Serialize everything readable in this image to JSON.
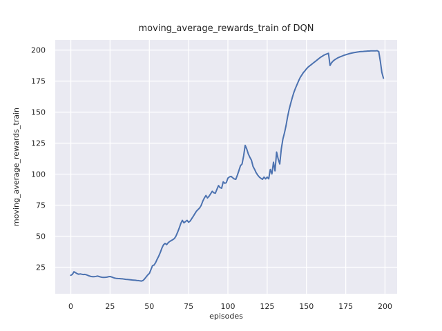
{
  "chart_data": {
    "type": "line",
    "title": "moving_average_rewards_train of DQN",
    "xlabel": "episodes",
    "ylabel": "moving_average_rewards_train",
    "xlim": [
      -9.9,
      207.7
    ],
    "ylim": [
      3.6,
      208.1
    ],
    "xticks": [
      0,
      25,
      50,
      75,
      100,
      125,
      150,
      175,
      200
    ],
    "yticks": [
      25,
      50,
      75,
      100,
      125,
      150,
      175,
      200
    ],
    "grid": true,
    "legend": false,
    "style": {
      "figure_bg": "#ffffff",
      "axes_bg": "#eaeaf2",
      "grid_color": "#ffffff",
      "line_color": "#4c72b0",
      "text_color": "#262626",
      "line_width": 2
    },
    "series": [
      {
        "name": "moving_average_rewards_train",
        "points": [
          [
            0,
            18.5
          ],
          [
            1,
            19.2
          ],
          [
            2,
            21.3
          ],
          [
            3,
            20.6
          ],
          [
            4,
            19.8
          ],
          [
            5,
            19.3
          ],
          [
            6,
            19.6
          ],
          [
            7,
            19.3
          ],
          [
            8,
            19.1
          ],
          [
            9,
            19.2
          ],
          [
            10,
            18.8
          ],
          [
            11,
            18.3
          ],
          [
            12,
            17.9
          ],
          [
            13,
            17.5
          ],
          [
            14,
            17.3
          ],
          [
            15,
            17.4
          ],
          [
            16,
            17.6
          ],
          [
            17,
            17.9
          ],
          [
            18,
            17.5
          ],
          [
            19,
            17.1
          ],
          [
            20,
            16.9
          ],
          [
            21,
            16.8
          ],
          [
            22,
            16.9
          ],
          [
            23,
            17.0
          ],
          [
            24,
            17.3
          ],
          [
            25,
            17.5
          ],
          [
            26,
            17.1
          ],
          [
            27,
            16.6
          ],
          [
            28,
            16.2
          ],
          [
            29,
            16.0
          ],
          [
            30,
            15.9
          ],
          [
            31,
            15.8
          ],
          [
            32,
            15.7
          ],
          [
            33,
            15.6
          ],
          [
            34,
            15.4
          ],
          [
            35,
            15.2
          ],
          [
            36,
            15.1
          ],
          [
            37,
            15.0
          ],
          [
            38,
            14.9
          ],
          [
            39,
            14.7
          ],
          [
            40,
            14.6
          ],
          [
            41,
            14.5
          ],
          [
            42,
            14.3
          ],
          [
            43,
            14.2
          ],
          [
            44,
            14.0
          ],
          [
            45,
            13.8
          ],
          [
            46,
            14.3
          ],
          [
            47,
            15.6
          ],
          [
            48,
            17.2
          ],
          [
            49,
            18.8
          ],
          [
            50,
            20.0
          ],
          [
            51,
            23.0
          ],
          [
            52,
            26.2
          ],
          [
            53,
            26.8
          ],
          [
            54,
            28.8
          ],
          [
            55,
            31.5
          ],
          [
            56,
            34.0
          ],
          [
            57,
            37.0
          ],
          [
            58,
            40.5
          ],
          [
            59,
            43.0
          ],
          [
            60,
            44.2
          ],
          [
            61,
            43.2
          ],
          [
            62,
            44.8
          ],
          [
            63,
            45.8
          ],
          [
            64,
            46.5
          ],
          [
            65,
            47.2
          ],
          [
            66,
            48.2
          ],
          [
            67,
            50.2
          ],
          [
            68,
            53.2
          ],
          [
            69,
            56.5
          ],
          [
            70,
            60.2
          ],
          [
            71,
            62.8
          ],
          [
            72,
            60.8
          ],
          [
            73,
            61.8
          ],
          [
            74,
            62.8
          ],
          [
            75,
            61.2
          ],
          [
            76,
            62.2
          ],
          [
            77,
            64.2
          ],
          [
            78,
            66.2
          ],
          [
            79,
            68.2
          ],
          [
            80,
            70.2
          ],
          [
            81,
            71.5
          ],
          [
            82,
            72.8
          ],
          [
            83,
            74.8
          ],
          [
            84,
            78.2
          ],
          [
            85,
            80.8
          ],
          [
            86,
            82.8
          ],
          [
            87,
            80.8
          ],
          [
            88,
            82.2
          ],
          [
            89,
            84.2
          ],
          [
            90,
            86.2
          ],
          [
            91,
            85.0
          ],
          [
            92,
            84.6
          ],
          [
            93,
            87.8
          ],
          [
            94,
            90.8
          ],
          [
            95,
            89.2
          ],
          [
            96,
            88.6
          ],
          [
            97,
            93.8
          ],
          [
            98,
            92.6
          ],
          [
            99,
            93.2
          ],
          [
            100,
            96.8
          ],
          [
            101,
            97.8
          ],
          [
            102,
            98.2
          ],
          [
            103,
            97.2
          ],
          [
            104,
            96.2
          ],
          [
            105,
            95.8
          ],
          [
            106,
            99.2
          ],
          [
            107,
            102.8
          ],
          [
            108,
            106.8
          ],
          [
            109,
            108.2
          ],
          [
            110,
            114.8
          ],
          [
            111,
            123.2
          ],
          [
            112,
            120.2
          ],
          [
            113,
            116.2
          ],
          [
            114,
            113.6
          ],
          [
            115,
            111.2
          ],
          [
            116,
            106.2
          ],
          [
            117,
            103.8
          ],
          [
            118,
            101.2
          ],
          [
            119,
            99.2
          ],
          [
            120,
            97.6
          ],
          [
            121,
            96.6
          ],
          [
            122,
            95.8
          ],
          [
            123,
            97.6
          ],
          [
            124,
            96.2
          ],
          [
            125,
            97.6
          ],
          [
            126,
            96.2
          ],
          [
            127,
            103.8
          ],
          [
            128,
            100.2
          ],
          [
            129,
            109.6
          ],
          [
            130,
            102.6
          ],
          [
            131,
            117.8
          ],
          [
            132,
            112.2
          ],
          [
            133,
            108.2
          ],
          [
            134,
            120.2
          ],
          [
            135,
            128.2
          ],
          [
            136,
            133.2
          ],
          [
            137,
            139.2
          ],
          [
            138,
            146.2
          ],
          [
            139,
            152.2
          ],
          [
            140,
            157.2
          ],
          [
            141,
            161.8
          ],
          [
            142,
            165.8
          ],
          [
            143,
            169.2
          ],
          [
            144,
            172.2
          ],
          [
            145,
            175.2
          ],
          [
            146,
            177.8
          ],
          [
            147,
            179.8
          ],
          [
            148,
            181.8
          ],
          [
            149,
            183.2
          ],
          [
            150,
            184.8
          ],
          [
            151,
            186.2
          ],
          [
            152,
            187.2
          ],
          [
            153,
            188.2
          ],
          [
            154,
            189.2
          ],
          [
            155,
            190.2
          ],
          [
            156,
            191.2
          ],
          [
            157,
            192.2
          ],
          [
            158,
            193.2
          ],
          [
            159,
            194.2
          ],
          [
            160,
            195.0
          ],
          [
            161,
            195.8
          ],
          [
            162,
            196.4
          ],
          [
            163,
            196.9
          ],
          [
            164,
            197.4
          ],
          [
            165,
            187.6
          ],
          [
            166,
            189.8
          ],
          [
            167,
            191.2
          ],
          [
            168,
            192.2
          ],
          [
            169,
            193.0
          ],
          [
            170,
            193.7
          ],
          [
            171,
            194.3
          ],
          [
            172,
            194.8
          ],
          [
            173,
            195.3
          ],
          [
            174,
            195.8
          ],
          [
            175,
            196.2
          ],
          [
            176,
            196.6
          ],
          [
            177,
            197.0
          ],
          [
            178,
            197.3
          ],
          [
            179,
            197.6
          ],
          [
            180,
            197.9
          ],
          [
            181,
            198.1
          ],
          [
            182,
            198.3
          ],
          [
            183,
            198.5
          ],
          [
            184,
            198.7
          ],
          [
            185,
            198.8
          ],
          [
            186,
            198.9
          ],
          [
            187,
            199.0
          ],
          [
            188,
            199.1
          ],
          [
            189,
            199.2
          ],
          [
            190,
            199.2
          ],
          [
            191,
            199.3
          ],
          [
            192,
            199.3
          ],
          [
            193,
            199.4
          ],
          [
            194,
            199.4
          ],
          [
            195,
            199.5
          ],
          [
            196,
            198.8
          ],
          [
            197,
            191.0
          ],
          [
            198,
            182.0
          ],
          [
            199,
            177.3
          ]
        ]
      }
    ]
  }
}
